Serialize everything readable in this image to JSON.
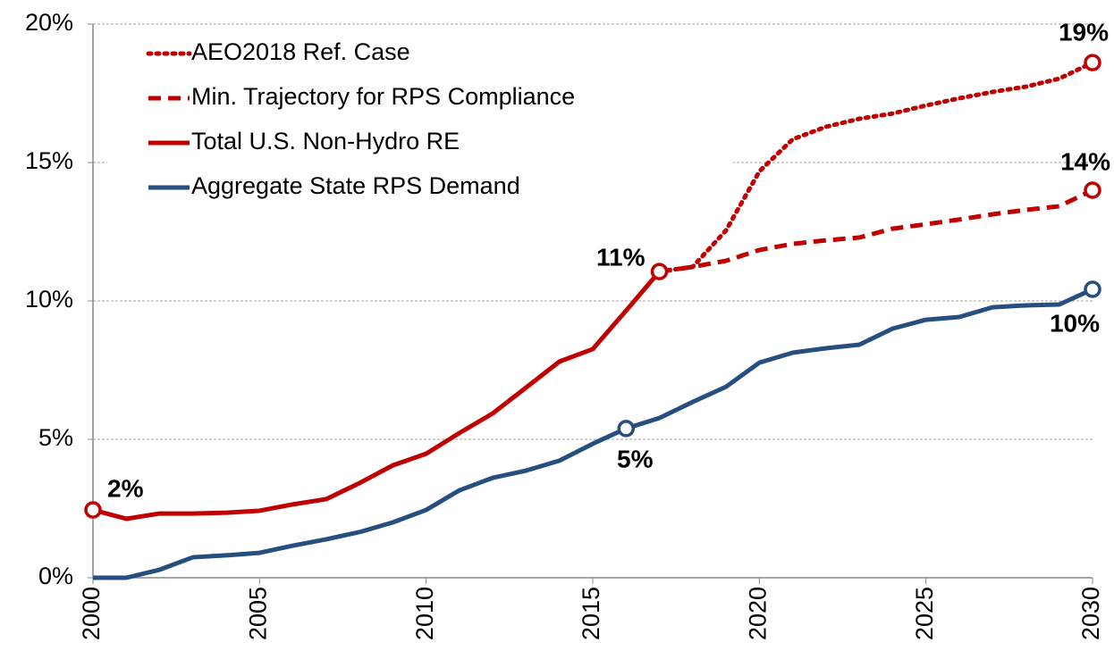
{
  "chart_data": {
    "type": "line",
    "x": [
      2000,
      2001,
      2002,
      2003,
      2004,
      2005,
      2006,
      2007,
      2008,
      2009,
      2010,
      2011,
      2012,
      2013,
      2014,
      2015,
      2016,
      2017,
      2018,
      2019,
      2020,
      2021,
      2022,
      2023,
      2024,
      2025,
      2026,
      2027,
      2028,
      2029,
      2030
    ],
    "xlim": [
      2000,
      2030
    ],
    "xticks": [
      2000,
      2005,
      2010,
      2015,
      2020,
      2025,
      2030
    ],
    "ylim": [
      0,
      20
    ],
    "yticks": [
      {
        "value": 0,
        "label": "0%"
      },
      {
        "value": 5,
        "label": "5%"
      },
      {
        "value": 10,
        "label": "10%"
      },
      {
        "value": 15,
        "label": "15%"
      },
      {
        "value": 20,
        "label": "20%"
      }
    ],
    "grid": true,
    "legend": "top-left",
    "series": [
      {
        "name": "AEO2018 Ref. Case",
        "color": "#c00000",
        "style": "dotted",
        "values": [
          null,
          null,
          null,
          null,
          null,
          null,
          null,
          null,
          null,
          null,
          null,
          null,
          null,
          null,
          null,
          null,
          null,
          11.06,
          11.23,
          12.55,
          14.68,
          15.84,
          16.29,
          16.58,
          16.77,
          17.06,
          17.32,
          17.55,
          17.74,
          18.03,
          18.61
        ]
      },
      {
        "name": "Min. Trajectory for RPS Compliance",
        "color": "#c00000",
        "style": "dashed",
        "values": [
          null,
          null,
          null,
          null,
          null,
          null,
          null,
          null,
          null,
          null,
          null,
          null,
          null,
          null,
          null,
          null,
          null,
          11.06,
          11.23,
          11.45,
          11.84,
          12.06,
          12.19,
          12.29,
          12.61,
          12.77,
          12.94,
          13.13,
          13.29,
          13.42,
          14.0
        ]
      },
      {
        "name": "Total U.S. Non-Hydro RE",
        "color": "#c00000",
        "style": "solid",
        "values": [
          2.45,
          2.13,
          2.32,
          2.32,
          2.35,
          2.42,
          2.65,
          2.84,
          3.42,
          4.06,
          4.48,
          5.23,
          5.94,
          6.87,
          7.81,
          8.26,
          9.65,
          11.06,
          null,
          null,
          null,
          null,
          null,
          null,
          null,
          null,
          null,
          null,
          null,
          null,
          null
        ]
      },
      {
        "name": "Aggregate State RPS Demand",
        "color": "#264f80",
        "style": "solid",
        "values": [
          0,
          0,
          0.29,
          0.74,
          0.81,
          0.9,
          1.16,
          1.39,
          1.65,
          2.0,
          2.45,
          3.16,
          3.61,
          3.87,
          4.23,
          4.84,
          5.39,
          5.77,
          6.35,
          6.9,
          7.77,
          8.13,
          8.29,
          8.42,
          9.0,
          9.32,
          9.42,
          9.77,
          9.84,
          9.87,
          10.42
        ]
      }
    ],
    "annotations": [
      {
        "text": "2%",
        "series": 2,
        "x": 2000
      },
      {
        "text": "11%",
        "series": 2,
        "x": 2017
      },
      {
        "text": "19%",
        "series": 0,
        "x": 2030
      },
      {
        "text": "14%",
        "series": 1,
        "x": 2030
      },
      {
        "text": "5%",
        "series": 3,
        "x": 2016
      },
      {
        "text": "10%",
        "series": 3,
        "x": 2030
      }
    ]
  }
}
